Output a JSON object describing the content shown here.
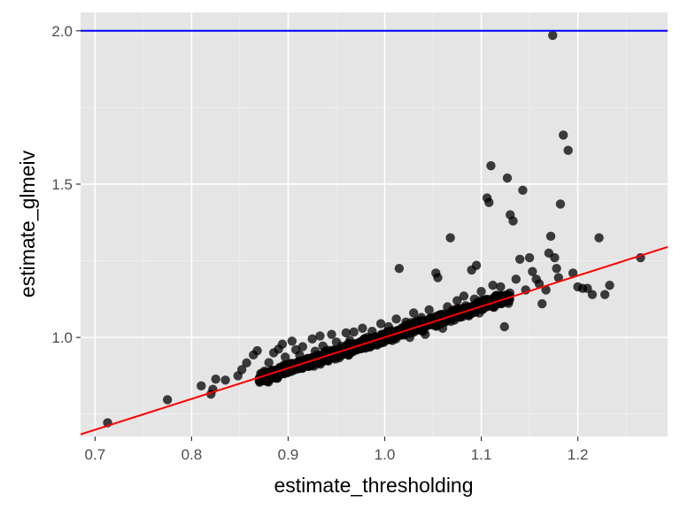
{
  "chart_data": {
    "type": "scatter",
    "title": "",
    "xlabel": "estimate_thresholding",
    "ylabel": "estimate_glmeiv",
    "xlim": [
      0.685,
      1.293
    ],
    "ylim": [
      0.677,
      2.06
    ],
    "x_ticks": [
      0.7,
      0.8,
      0.9,
      1.0,
      1.1,
      1.2
    ],
    "x_tick_labels": [
      "0.7",
      "0.8",
      "0.9",
      "1.0",
      "1.1",
      "1.2"
    ],
    "y_ticks": [
      1.0,
      1.5,
      2.0
    ],
    "y_tick_labels": [
      "1.0",
      "1.5",
      "2.0"
    ],
    "grid": true,
    "panel_background": "#e5e5e5",
    "point_color": "#000000",
    "point_alpha": 0.75,
    "reference_lines": [
      {
        "kind": "horizontal",
        "y": 2.0,
        "color": "#0000ff"
      },
      {
        "kind": "regression",
        "x1": 0.685,
        "y1": 0.684,
        "x2": 1.293,
        "y2": 1.295,
        "color": "#ff0000"
      }
    ],
    "points": [
      [
        0.713,
        0.722
      ],
      [
        0.775,
        0.797
      ],
      [
        0.81,
        0.842
      ],
      [
        0.82,
        0.815
      ],
      [
        0.822,
        0.831
      ],
      [
        0.825,
        0.864
      ],
      [
        0.835,
        0.861
      ],
      [
        0.848,
        0.875
      ],
      [
        0.852,
        0.895
      ],
      [
        0.857,
        0.917
      ],
      [
        0.864,
        0.943
      ],
      [
        0.868,
        0.957
      ],
      [
        0.877,
        0.887
      ],
      [
        0.88,
        0.918
      ],
      [
        0.885,
        0.95
      ],
      [
        0.89,
        0.962
      ],
      [
        0.894,
        0.978
      ],
      [
        0.897,
        0.936
      ],
      [
        0.9,
        0.905
      ],
      [
        0.904,
        0.988
      ],
      [
        0.908,
        0.96
      ],
      [
        0.912,
        0.942
      ],
      [
        0.915,
        0.97
      ],
      [
        0.92,
        0.931
      ],
      [
        0.925,
        0.995
      ],
      [
        0.928,
        0.955
      ],
      [
        0.933,
        1.005
      ],
      [
        0.936,
        0.972
      ],
      [
        0.94,
        0.94
      ],
      [
        0.945,
        1.01
      ],
      [
        0.95,
        0.985
      ],
      [
        0.955,
        0.958
      ],
      [
        0.96,
        1.015
      ],
      [
        0.964,
        0.99
      ],
      [
        0.968,
        1.018
      ],
      [
        0.972,
        0.965
      ],
      [
        0.977,
        1.03
      ],
      [
        0.982,
        1.0
      ],
      [
        0.987,
        1.02
      ],
      [
        0.992,
        0.975
      ],
      [
        0.996,
        1.045
      ],
      [
        1.0,
        1.01
      ],
      [
        1.004,
        1.035
      ],
      [
        1.008,
        0.99
      ],
      [
        1.012,
        1.06
      ],
      [
        1.015,
        1.225
      ],
      [
        1.018,
        1.025
      ],
      [
        1.022,
        1.05
      ],
      [
        1.026,
        1.0
      ],
      [
        1.03,
        1.08
      ],
      [
        1.034,
        1.04
      ],
      [
        1.038,
        1.065
      ],
      [
        1.042,
        1.01
      ],
      [
        1.046,
        1.09
      ],
      [
        1.05,
        1.055
      ],
      [
        1.053,
        1.21
      ],
      [
        1.055,
        1.195
      ],
      [
        1.058,
        1.075
      ],
      [
        1.06,
        1.03
      ],
      [
        1.065,
        1.1
      ],
      [
        1.068,
        1.325
      ],
      [
        1.07,
        1.06
      ],
      [
        1.075,
        1.12
      ],
      [
        1.078,
        1.07
      ],
      [
        1.082,
        1.135
      ],
      [
        1.086,
        1.09
      ],
      [
        1.09,
        1.22
      ],
      [
        1.093,
        1.125
      ],
      [
        1.095,
        1.235
      ],
      [
        1.098,
        1.08
      ],
      [
        1.1,
        1.15
      ],
      [
        1.104,
        1.105
      ],
      [
        1.106,
        1.455
      ],
      [
        1.108,
        1.44
      ],
      [
        1.11,
        1.56
      ],
      [
        1.112,
        1.17
      ],
      [
        1.116,
        1.12
      ],
      [
        1.12,
        1.165
      ],
      [
        1.124,
        1.035
      ],
      [
        1.127,
        1.52
      ],
      [
        1.13,
        1.4
      ],
      [
        1.133,
        1.38
      ],
      [
        1.136,
        1.19
      ],
      [
        1.14,
        1.255
      ],
      [
        1.143,
        1.48
      ],
      [
        1.146,
        1.155
      ],
      [
        1.15,
        1.26
      ],
      [
        1.153,
        1.215
      ],
      [
        1.157,
        1.19
      ],
      [
        1.16,
        1.175
      ],
      [
        1.163,
        1.11
      ],
      [
        1.167,
        1.155
      ],
      [
        1.17,
        1.275
      ],
      [
        1.172,
        1.33
      ],
      [
        1.174,
        1.985
      ],
      [
        1.176,
        1.26
      ],
      [
        1.178,
        1.225
      ],
      [
        1.18,
        1.195
      ],
      [
        1.182,
        1.435
      ],
      [
        1.185,
        1.66
      ],
      [
        1.19,
        1.61
      ],
      [
        1.195,
        1.21
      ],
      [
        1.2,
        1.165
      ],
      [
        1.205,
        1.16
      ],
      [
        1.21,
        1.16
      ],
      [
        1.215,
        1.14
      ],
      [
        1.222,
        1.325
      ],
      [
        1.228,
        1.14
      ],
      [
        1.233,
        1.17
      ],
      [
        1.265,
        1.26
      ]
    ]
  }
}
